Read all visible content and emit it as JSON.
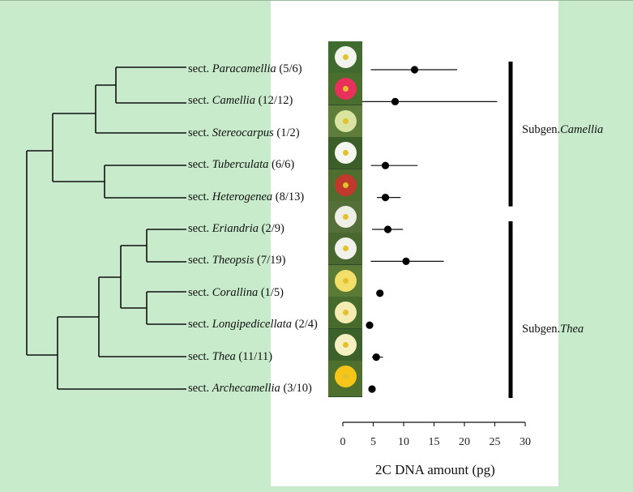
{
  "taxa": [
    {
      "prefix": "sect. ",
      "name": "Paracamellia",
      "count": "(5/6)",
      "color": "#f4f4ee"
    },
    {
      "prefix": "sect. ",
      "name": "Camellia",
      "count": "(12/12)",
      "color": "#e8305a"
    },
    {
      "prefix": "sect. ",
      "name": "Stereocarpus",
      "count": "(1/2)",
      "color": "#d8e4a0"
    },
    {
      "prefix": "sect. ",
      "name": "Tuberculata",
      "count": "(6/6)",
      "color": "#f6f6f0"
    },
    {
      "prefix": "sect. ",
      "name": "Heterogenea",
      "count": "(8/13)",
      "color": "#c0392b"
    },
    {
      "prefix": "sect. ",
      "name": "Eriandria",
      "count": "(2/9)",
      "color": "#eef0e6"
    },
    {
      "prefix": "sect. ",
      "name": "Theopsis",
      "count": "(7/19)",
      "color": "#f2f2ec"
    },
    {
      "prefix": "sect. ",
      "name": "Corallina",
      "count": "(1/5)",
      "color": "#f3e06a"
    },
    {
      "prefix": "sect. ",
      "name": "Longipedicellata",
      "count": "(2/4)",
      "color": "#f4ecb0"
    },
    {
      "prefix": "sect. ",
      "name": "Thea",
      "count": "(11/11)",
      "color": "#f6efc2"
    },
    {
      "prefix": "sect. ",
      "name": "Archecamellia",
      "count": "(3/10)",
      "color": "#f5c518"
    }
  ],
  "subgenera": [
    {
      "prefix": "Subgen.",
      "name": "Camellia",
      "first": 0,
      "last": 4
    },
    {
      "prefix": "Subgen.",
      "name": "Thea",
      "first": 5,
      "last": 10
    }
  ],
  "chart_data": {
    "type": "dot-whisker",
    "xlabel": "2C DNA amount (pg)",
    "xlim": [
      0,
      30
    ],
    "xticks": [
      0,
      5,
      10,
      15,
      20,
      25,
      30
    ],
    "grid": false,
    "series": [
      {
        "category": "Paracamellia",
        "mean": 11.8,
        "min": 4.6,
        "max": 18.8
      },
      {
        "category": "Camellia",
        "mean": 8.6,
        "min": 3.2,
        "max": 25.4
      },
      {
        "category": "Stereocarpus",
        "mean": null,
        "min": null,
        "max": null
      },
      {
        "category": "Tuberculata",
        "mean": 7.0,
        "min": 4.6,
        "max": 12.3
      },
      {
        "category": "Heterogenea",
        "mean": 7.0,
        "min": 5.6,
        "max": 9.5
      },
      {
        "category": "Eriandria",
        "mean": 7.4,
        "min": 4.8,
        "max": 9.9
      },
      {
        "category": "Theopsis",
        "mean": 10.4,
        "min": 4.6,
        "max": 16.6
      },
      {
        "category": "Corallina",
        "mean": 6.1,
        "min": 6.1,
        "max": 6.1
      },
      {
        "category": "Longipedicellata",
        "mean": 4.4,
        "min": 4.4,
        "max": 4.4
      },
      {
        "category": "Thea",
        "mean": 5.5,
        "min": 4.8,
        "max": 6.6
      },
      {
        "category": "Archecamellia",
        "mean": 4.8,
        "min": 4.5,
        "max": 5.4
      }
    ]
  }
}
